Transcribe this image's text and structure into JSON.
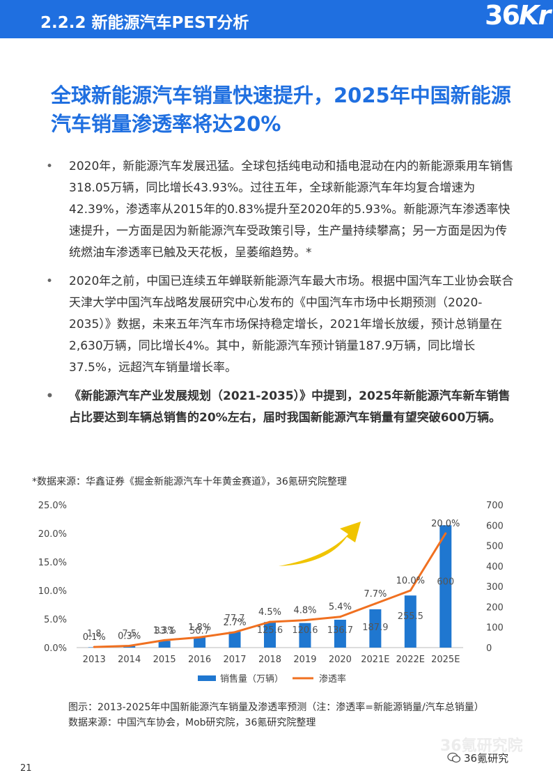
{
  "header": {
    "title": "2.2.2 新能源汽车PEST分析",
    "logo": "36Kr"
  },
  "headline": "全球新能源汽车销量快速提升，2025年中国新能源汽车销量渗透率将达20%",
  "bullets": [
    "2020年，新能源汽车发展迅猛。全球包括纯电动和插电混动在内的新能源乘用车销售318.05万辆，同比增长43.93%。过往五年，全球新能源汽车年均复合增速为42.39%，渗透率从2015年的0.83%提升至2020年的5.93%。新能源汽车渗透率快速提升，一方面是因为新能源汽车受政策引导，生产量持续攀高；另一方面是因为传统燃油车渗透率已触及天花板，呈萎缩趋势。*",
    "2020年之前，中国已连续五年蝉联新能源汽车最大市场。根据中国汽车工业协会联合天津大学中国汽车战略发展研究中心发布的《中国汽车市场中长期预测（2020-2035）》数据，未来五年汽车市场保持稳定增长，2021年增长放缓，预计总销量在2,630万辆，同比增长4%。其中，新能源汽车预计销量187.9万辆，同比增长37.5%，远超汽车销量增长率。",
    "《新能源汽车产业发展规划（2021-2035）》中提到，2025年新能源汽车新车销售占比要达到车辆总销售的20%左右，届时我国新能源汽车销量有望突破600万辆。"
  ],
  "source_top": "*数据来源：华鑫证券《掘金新能源汽车十年黄金赛道》，36氪研究院整理",
  "chart_data": {
    "type": "bar",
    "categories": [
      "2013",
      "2014",
      "2015",
      "2016",
      "2017",
      "2018",
      "2019",
      "2020",
      "2021E",
      "2022E",
      "2025E"
    ],
    "series": [
      {
        "name": "销售量（万辆）",
        "type": "bar",
        "axis": "right",
        "values": [
          1.8,
          7.5,
          33.1,
          50.7,
          77.7,
          125.6,
          120.6,
          136.7,
          187.9,
          255.5,
          600
        ],
        "labels": [
          "1.8",
          "7.5",
          "33.1",
          "50.7",
          "77.7",
          "125.6",
          "120.6",
          "136.7",
          "187.9",
          "255.5",
          "600"
        ]
      },
      {
        "name": "渗透率",
        "type": "line",
        "axis": "left",
        "values": [
          0.1,
          0.3,
          1.3,
          1.8,
          2.7,
          4.5,
          4.8,
          5.4,
          7.7,
          10.0,
          20.0
        ],
        "labels": [
          "0.1%",
          "0.3%",
          "1.3%",
          "1.8%",
          "2.7%",
          "4.5%",
          "4.8%",
          "5.4%",
          "7.7%",
          "10.0%",
          "20.0%"
        ]
      }
    ],
    "left_axis": {
      "ylim": [
        0,
        25
      ],
      "ticks": [
        "0.0%",
        "5.0%",
        "10.0%",
        "15.0%",
        "20.0%",
        "25.0%"
      ]
    },
    "right_axis": {
      "ylim": [
        0,
        700
      ],
      "ticks": [
        "0",
        "100",
        "200",
        "300",
        "400",
        "500",
        "600",
        "700"
      ]
    },
    "legend_position": "bottom",
    "colors": {
      "bar": "#1f77d0",
      "line": "#f07020",
      "arrow": "#f0c400"
    }
  },
  "caption1": "图示：2013-2025年中国新能源汽车销量及渗透率预测（注：渗透率=新能源销量/汽车总销量）",
  "caption2": "数据来源：中国汽车协会，Mob研究院，36氪研究院整理",
  "watermark": "36氪研究院",
  "wechat_label": "36氪研究",
  "page_number": "21"
}
